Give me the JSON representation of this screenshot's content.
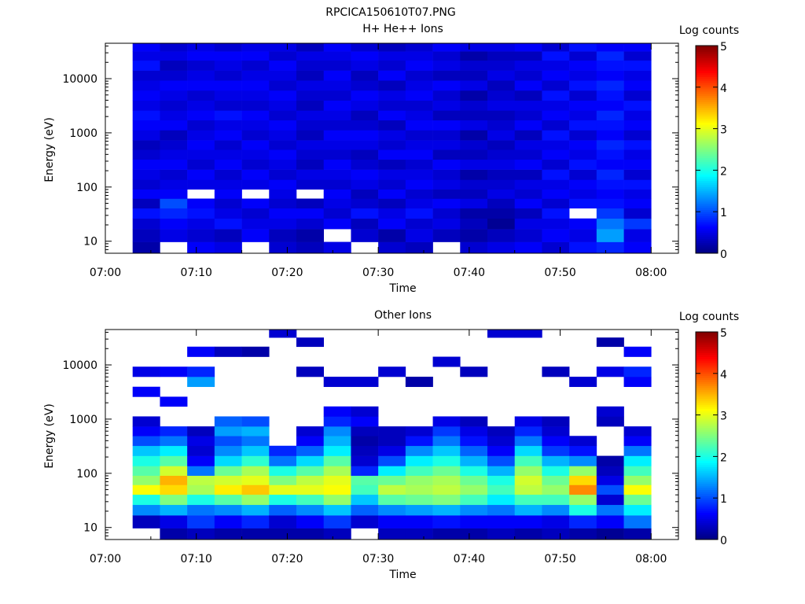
{
  "figure": {
    "title": "RPCICA150610T07.PNG"
  },
  "colorbar": {
    "label": "Log counts",
    "ticks": [
      "0",
      "1",
      "2",
      "3",
      "4",
      "5"
    ],
    "range": [
      0,
      5
    ],
    "colormap": "jet"
  },
  "chart_data": [
    {
      "type": "heatmap",
      "title": "H+ He++ Ions",
      "xlabel": "Time",
      "ylabel": "Energy (eV)",
      "x_ticks": [
        "07:00",
        "07:10",
        "07:20",
        "07:30",
        "07:40",
        "07:50",
        "08:00"
      ],
      "y_ticks": [
        "10",
        "100",
        "1000",
        "10000"
      ],
      "y_scale": "log",
      "xlim": [
        "07:00",
        "08:03"
      ],
      "ylim": [
        6,
        45000
      ],
      "time_bins": [
        "07:03",
        "07:06",
        "07:09",
        "07:12",
        "07:15",
        "07:18",
        "07:21",
        "07:24",
        "07:27",
        "07:30",
        "07:33",
        "07:36",
        "07:39",
        "07:42",
        "07:45",
        "07:48",
        "07:51",
        "07:54",
        "07:57"
      ],
      "energy_bins": [
        7,
        13.5,
        21,
        33,
        50,
        75,
        110,
        170,
        260,
        400,
        600,
        900,
        1400,
        2100,
        3200,
        4900,
        7500,
        11500,
        17500,
        27000,
        38000
      ],
      "colorbar_range": [
        0,
        5
      ],
      "colorbar_label": "Log counts",
      "z_log_counts": [
        [
          0.2,
          0.3,
          0.4,
          0.7,
          0.3,
          0.6,
          0.4,
          0.5,
          0.6,
          0.4,
          0.3,
          0.5,
          0.6,
          0.7,
          0.5,
          0.6,
          0.5,
          0.4,
          0.7,
          0.5,
          0.6
        ],
        [
          null,
          0.5,
          0.6,
          0.8,
          1.0,
          0.6,
          0.5,
          0.4,
          0.6,
          0.5,
          0.4,
          0.3,
          0.6,
          0.5,
          0.4,
          0.5,
          0.6,
          0.4,
          0.3,
          0.5,
          0.4
        ],
        [
          0.6,
          0.4,
          0.5,
          0.7,
          0.6,
          null,
          0.5,
          0.6,
          0.4,
          0.5,
          0.6,
          0.5,
          0.4,
          0.6,
          0.5,
          0.4,
          0.6,
          0.5,
          0.4,
          0.6,
          0.5
        ],
        [
          0.5,
          0.3,
          0.7,
          0.5,
          0.4,
          0.6,
          0.5,
          0.4,
          0.6,
          0.5,
          0.4,
          0.6,
          0.5,
          0.7,
          0.4,
          0.5,
          0.6,
          0.4,
          0.5,
          0.6,
          0.4
        ],
        [
          null,
          0.6,
          0.5,
          0.4,
          0.6,
          null,
          0.5,
          0.6,
          0.4,
          0.5,
          0.6,
          0.4,
          0.5,
          0.6,
          0.4,
          0.5,
          0.6,
          0.5,
          0.4,
          0.6,
          0.5
        ],
        [
          0.4,
          0.3,
          0.5,
          0.6,
          0.4,
          0.5,
          0.6,
          0.4,
          0.5,
          0.6,
          0.4,
          0.5,
          0.6,
          0.4,
          0.5,
          0.6,
          0.4,
          0.5,
          0.6,
          0.4,
          0.5
        ],
        [
          0.3,
          0.2,
          0.4,
          0.6,
          0.3,
          null,
          0.4,
          0.5,
          0.3,
          0.4,
          0.5,
          0.3,
          0.4,
          0.5,
          0.3,
          0.4,
          0.5,
          0.3,
          0.4,
          0.5,
          0.3
        ],
        [
          0.5,
          null,
          0.6,
          0.4,
          0.5,
          0.6,
          0.4,
          0.5,
          0.6,
          0.4,
          0.5,
          0.6,
          0.4,
          0.5,
          0.6,
          0.4,
          0.5,
          0.6,
          0.4,
          0.5,
          0.6
        ],
        [
          null,
          0.4,
          0.3,
          0.7,
          0.4,
          0.3,
          0.5,
          0.6,
          0.4,
          0.3,
          0.5,
          0.6,
          0.4,
          0.3,
          0.5,
          0.6,
          0.4,
          0.3,
          0.5,
          0.6,
          0.4
        ],
        [
          0.4,
          0.2,
          0.6,
          0.5,
          0.3,
          0.6,
          0.4,
          0.5,
          0.3,
          0.6,
          0.4,
          0.5,
          0.3,
          0.6,
          0.4,
          0.5,
          0.3,
          0.6,
          0.4,
          0.5,
          0.3
        ],
        [
          0.3,
          0.5,
          0.4,
          0.7,
          0.5,
          0.4,
          0.6,
          0.5,
          0.4,
          0.6,
          0.5,
          0.4,
          0.6,
          0.5,
          0.4,
          0.6,
          0.5,
          0.4,
          0.6,
          0.5,
          0.4
        ],
        [
          null,
          0.3,
          0.5,
          0.4,
          0.6,
          0.3,
          0.5,
          0.4,
          0.6,
          0.3,
          0.5,
          0.4,
          0.6,
          0.3,
          0.5,
          0.4,
          0.6,
          0.3,
          0.5,
          0.4,
          0.6
        ],
        [
          0.4,
          0.2,
          0.3,
          0.2,
          0.5,
          0.3,
          0.4,
          0.2,
          0.5,
          0.3,
          0.4,
          0.2,
          0.5,
          0.3,
          0.4,
          0.2,
          0.5,
          0.3,
          0.4,
          0.2,
          0.5
        ],
        [
          0.5,
          0.3,
          0.1,
          0.2,
          0.3,
          0.5,
          0.4,
          0.3,
          0.5,
          0.4,
          0.3,
          0.5,
          0.4,
          0.3,
          0.5,
          0.4,
          0.3,
          0.5,
          0.4,
          0.3,
          0.5
        ],
        [
          0.6,
          0.4,
          0.5,
          0.3,
          0.6,
          0.4,
          0.5,
          0.3,
          0.6,
          0.4,
          0.5,
          0.3,
          0.6,
          0.4,
          0.5,
          0.3,
          0.6,
          0.4,
          0.5,
          0.3,
          0.6
        ],
        [
          0.4,
          0.6,
          0.5,
          0.7,
          0.4,
          0.6,
          0.5,
          0.7,
          0.4,
          0.6,
          0.5,
          0.7,
          0.4,
          0.6,
          0.5,
          0.7,
          0.4,
          0.6,
          0.5,
          0.7,
          0.4
        ],
        [
          0.7,
          0.5,
          0.6,
          null,
          0.7,
          0.5,
          0.6,
          0.4,
          0.7,
          0.5,
          0.6,
          0.4,
          0.7,
          0.5,
          0.6,
          0.4,
          0.7,
          0.5,
          0.6,
          0.4,
          0.7
        ],
        [
          0.8,
          1.4,
          1.2,
          0.9,
          0.7,
          0.6,
          0.7,
          0.8,
          0.6,
          0.7,
          0.8,
          0.6,
          0.7,
          0.8,
          0.6,
          0.7,
          0.8,
          0.6,
          0.7,
          0.8,
          0.6
        ],
        [
          0.6,
          0.5,
          0.9,
          0.4,
          0.6,
          0.5,
          0.7,
          0.4,
          0.6,
          0.5,
          0.7,
          0.4,
          0.6,
          0.5,
          0.7,
          0.4,
          0.6,
          0.5,
          0.7,
          0.4,
          0.6
        ]
      ]
    },
    {
      "type": "heatmap",
      "title": "Other Ions",
      "xlabel": "Time",
      "ylabel": "Energy (eV)",
      "x_ticks": [
        "07:00",
        "07:10",
        "07:20",
        "07:30",
        "07:40",
        "07:50",
        "08:00"
      ],
      "y_ticks": [
        "10",
        "100",
        "1000",
        "10000"
      ],
      "y_scale": "log",
      "xlim": [
        "07:00",
        "08:03"
      ],
      "ylim": [
        6,
        45000
      ],
      "time_bins": [
        "07:03",
        "07:06",
        "07:09",
        "07:12",
        "07:15",
        "07:18",
        "07:21",
        "07:24",
        "07:27",
        "07:30",
        "07:33",
        "07:36",
        "07:39",
        "07:42",
        "07:45",
        "07:48",
        "07:51",
        "07:54",
        "07:57"
      ],
      "energy_bins": [
        7,
        13.5,
        21,
        33,
        50,
        75,
        110,
        170,
        260,
        400,
        600,
        900,
        1400,
        2100,
        3200,
        4900,
        7500,
        11500,
        17500,
        27000,
        38000
      ],
      "colorbar_range": [
        0,
        5
      ],
      "colorbar_label": "Log counts",
      "z_log_counts": [
        [
          null,
          0.3,
          1.3,
          2.0,
          3.1,
          2.6,
          2.3,
          2.0,
          1.6,
          1.0,
          0.6,
          0.4,
          null,
          null,
          0.6,
          null,
          0.5,
          null,
          null,
          null,
          null
        ],
        [
          0.2,
          0.5,
          1.5,
          2.5,
          3.3,
          3.5,
          2.9,
          2.3,
          1.8,
          1.2,
          0.8,
          null,
          null,
          0.6,
          null,
          null,
          0.6,
          null,
          null,
          null,
          null
        ],
        [
          0.3,
          0.9,
          1.2,
          2.0,
          2.7,
          2.8,
          1.2,
          0.6,
          0.4,
          0.5,
          0.3,
          null,
          null,
          null,
          null,
          1.4,
          0.8,
          null,
          0.6,
          null,
          null
        ],
        [
          0.2,
          0.6,
          1.3,
          2.3,
          3.2,
          2.9,
          2.4,
          1.7,
          1.3,
          1.0,
          1.4,
          1.1,
          null,
          null,
          null,
          null,
          null,
          null,
          0.3,
          null,
          null
        ],
        [
          0.2,
          0.8,
          1.5,
          2.6,
          3.4,
          3.0,
          2.7,
          2.1,
          1.6,
          1.2,
          1.5,
          1.0,
          null,
          null,
          null,
          null,
          null,
          null,
          0.2,
          null,
          null
        ],
        [
          0.2,
          0.4,
          1.1,
          2.0,
          3.0,
          2.5,
          2.0,
          1.2,
          0.8,
          null,
          null,
          null,
          null,
          null,
          null,
          null,
          null,
          null,
          null,
          null,
          0.4
        ],
        [
          0.2,
          0.6,
          1.3,
          2.2,
          3.0,
          2.8,
          2.3,
          1.7,
          1.1,
          0.6,
          0.4,
          null,
          null,
          null,
          null,
          null,
          0.3,
          null,
          null,
          0.3,
          null
        ],
        [
          0.3,
          0.9,
          1.6,
          2.6,
          3.1,
          3.0,
          2.7,
          2.3,
          1.8,
          1.5,
          1.3,
          0.8,
          0.6,
          null,
          null,
          0.4,
          null,
          null,
          null,
          null,
          null
        ],
        [
          null,
          0.4,
          1.1,
          1.6,
          2.2,
          2.3,
          0.8,
          0.4,
          0.3,
          0.2,
          0.3,
          0.6,
          0.4,
          null,
          null,
          0.4,
          null,
          null,
          null,
          null,
          null
        ],
        [
          0.3,
          0.6,
          1.3,
          2.3,
          2.8,
          2.4,
          1.8,
          1.0,
          0.5,
          0.3,
          0.3,
          null,
          null,
          null,
          null,
          null,
          0.4,
          null,
          null,
          null,
          null
        ],
        [
          0.3,
          0.6,
          1.4,
          2.4,
          2.7,
          2.6,
          2.2,
          1.8,
          1.3,
          0.7,
          0.4,
          null,
          null,
          null,
          null,
          0.2,
          null,
          null,
          null,
          null,
          null
        ],
        [
          0.2,
          0.7,
          1.5,
          2.5,
          2.8,
          2.7,
          2.4,
          2.0,
          1.6,
          1.2,
          0.9,
          0.5,
          null,
          null,
          null,
          null,
          null,
          0.4,
          null,
          null,
          null
        ],
        [
          0.2,
          0.6,
          1.3,
          2.2,
          2.6,
          2.4,
          2.0,
          1.5,
          1.1,
          0.7,
          0.5,
          0.3,
          null,
          null,
          null,
          null,
          0.3,
          null,
          null,
          null,
          null
        ],
        [
          0.3,
          0.6,
          1.2,
          1.8,
          2.2,
          2.0,
          1.5,
          1.0,
          0.6,
          0.4,
          0.3,
          null,
          null,
          null,
          null,
          null,
          null,
          null,
          null,
          null,
          0.4
        ],
        [
          0.2,
          0.6,
          1.5,
          2.2,
          2.8,
          2.9,
          2.6,
          2.2,
          1.7,
          1.2,
          0.8,
          0.5,
          null,
          null,
          null,
          null,
          null,
          null,
          null,
          null,
          0.4
        ],
        [
          0.3,
          0.5,
          1.3,
          2.2,
          2.6,
          2.4,
          2.0,
          1.5,
          0.9,
          0.6,
          0.4,
          0.3,
          null,
          null,
          null,
          null,
          0.3,
          null,
          null,
          null,
          null
        ],
        [
          0.2,
          0.8,
          2.0,
          2.6,
          3.7,
          3.3,
          2.6,
          1.3,
          0.7,
          0.4,
          null,
          null,
          null,
          null,
          null,
          0.4,
          null,
          null,
          null,
          null,
          null
        ],
        [
          0.1,
          0.6,
          1.2,
          0.4,
          1.0,
          0.5,
          0.3,
          0.2,
          null,
          null,
          null,
          0.3,
          0.4,
          null,
          null,
          null,
          0.5,
          null,
          null,
          0.2,
          null
        ],
        [
          0.2,
          1.2,
          1.8,
          2.4,
          3.1,
          2.6,
          2.2,
          1.8,
          1.2,
          0.6,
          0.4,
          null,
          null,
          null,
          null,
          0.6,
          0.8,
          null,
          0.6,
          null,
          null
        ]
      ]
    }
  ]
}
